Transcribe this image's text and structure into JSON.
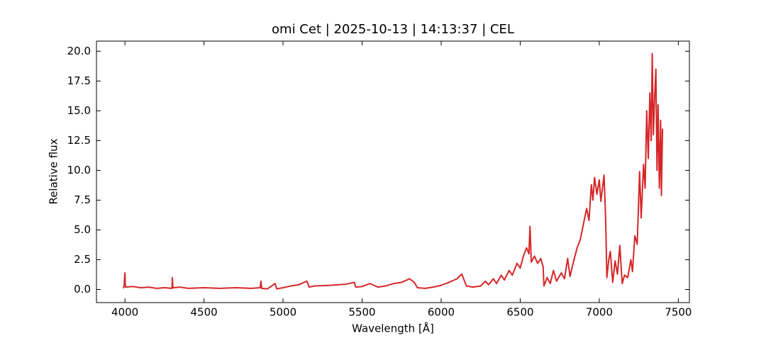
{
  "chart_data": {
    "type": "line",
    "title": "omi Cet | 2025-10-13 | 14:13:37 | CEL",
    "x_label": "Wavelength [Å]",
    "y_label": "Relative flux",
    "color": "#d62728",
    "x": [
      3990,
      3995,
      4000,
      4003,
      4050,
      4100,
      4150,
      4200,
      4250,
      4298,
      4300,
      4303,
      4350,
      4400,
      4500,
      4600,
      4700,
      4800,
      4855,
      4860,
      4865,
      4900,
      4940,
      4950,
      4960,
      5000,
      5050,
      5100,
      5150,
      5165,
      5200,
      5300,
      5400,
      5450,
      5460,
      5500,
      5550,
      5600,
      5650,
      5700,
      5750,
      5800,
      5830,
      5850,
      5900,
      5950,
      6000,
      6050,
      6100,
      6130,
      6160,
      6200,
      6250,
      6280,
      6300,
      6330,
      6350,
      6380,
      6400,
      6430,
      6450,
      6480,
      6500,
      6520,
      6540,
      6555,
      6562,
      6570,
      6590,
      6610,
      6630,
      6645,
      6650,
      6670,
      6690,
      6710,
      6730,
      6760,
      6780,
      6800,
      6815,
      6840,
      6860,
      6880,
      6900,
      6920,
      6935,
      6950,
      6960,
      6970,
      6985,
      7000,
      7010,
      7020,
      7030,
      7040,
      7048,
      7060,
      7070,
      7085,
      7100,
      7115,
      7130,
      7145,
      7160,
      7180,
      7200,
      7210,
      7225,
      7240,
      7255,
      7265,
      7280,
      7290,
      7300,
      7310,
      7320,
      7328,
      7335,
      7342,
      7350,
      7358,
      7365,
      7372,
      7380,
      7388,
      7393,
      7400
    ],
    "values": [
      0.1,
      0.3,
      1.4,
      0.2,
      0.25,
      0.15,
      0.2,
      0.1,
      0.15,
      0.1,
      1.0,
      0.15,
      0.2,
      0.1,
      0.15,
      0.1,
      0.15,
      0.1,
      0.15,
      0.7,
      0.1,
      0.05,
      0.4,
      0.5,
      0.05,
      0.15,
      0.3,
      0.4,
      0.7,
      0.2,
      0.3,
      0.35,
      0.45,
      0.6,
      0.2,
      0.25,
      0.5,
      0.2,
      0.3,
      0.5,
      0.6,
      0.9,
      0.6,
      0.15,
      0.1,
      0.2,
      0.35,
      0.6,
      0.9,
      1.3,
      0.3,
      0.2,
      0.3,
      0.7,
      0.4,
      0.9,
      0.5,
      1.2,
      0.8,
      1.6,
      1.2,
      2.2,
      1.8,
      2.8,
      3.5,
      3.0,
      5.3,
      2.3,
      2.8,
      2.2,
      2.6,
      1.9,
      0.3,
      1.0,
      0.5,
      1.6,
      0.7,
      1.4,
      0.9,
      2.6,
      1.1,
      2.5,
      3.5,
      4.2,
      5.5,
      6.8,
      5.8,
      8.8,
      7.5,
      9.4,
      8.0,
      9.2,
      7.4,
      8.5,
      9.6,
      6.0,
      1.0,
      2.5,
      3.2,
      0.6,
      2.4,
      1.3,
      3.7,
      0.5,
      1.2,
      1.0,
      2.5,
      1.5,
      4.5,
      3.8,
      9.9,
      6.0,
      10.5,
      8.5,
      15.0,
      11.0,
      16.5,
      12.5,
      19.8,
      13.0,
      16.0,
      18.5,
      10.0,
      15.5,
      8.5,
      14.2,
      7.9,
      13.5
    ],
    "xlim": [
      3820,
      7570
    ],
    "ylim": [
      -1.1,
      20.85
    ],
    "xticks": [
      4000,
      4500,
      5000,
      5500,
      6000,
      6500,
      7000,
      7500
    ],
    "yticks": [
      {
        "value": 0,
        "label": "0.0"
      },
      2.5,
      {
        "value": 5,
        "label": "5.0"
      },
      7.5,
      {
        "value": 10,
        "label": "10.0"
      },
      12.5,
      {
        "value": 15,
        "label": "15.0"
      },
      17.5,
      {
        "value": 20,
        "label": "20.0"
      }
    ]
  }
}
